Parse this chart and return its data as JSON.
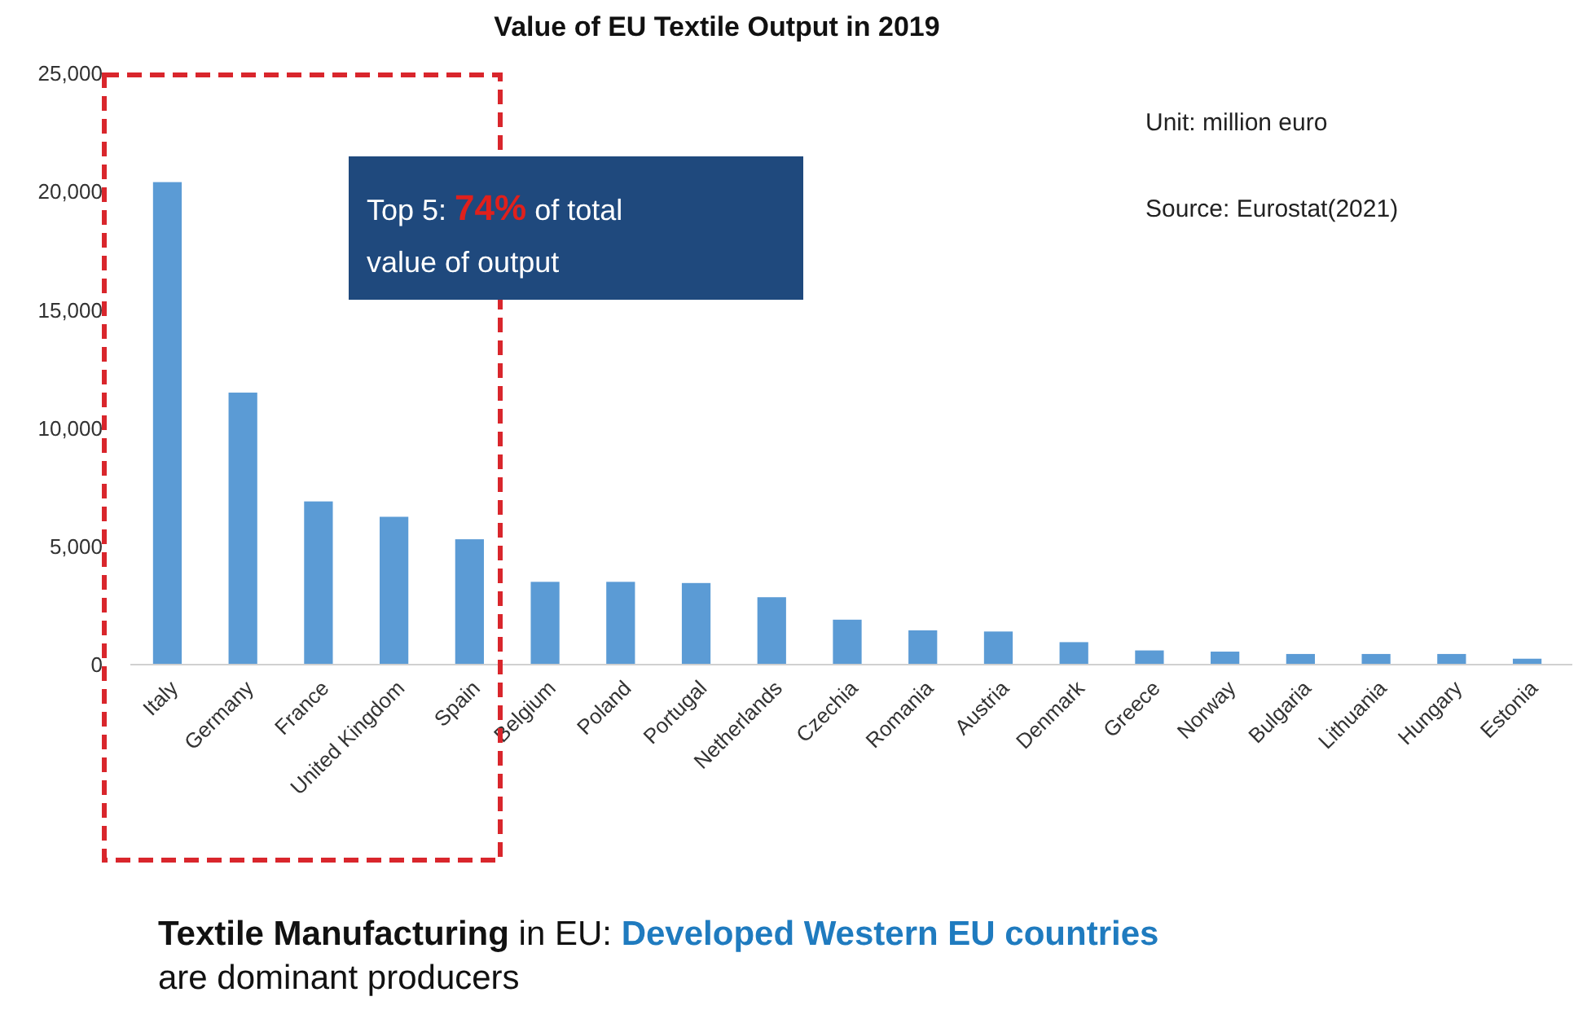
{
  "chart_data": {
    "type": "bar",
    "title": "Value of EU Textile Output in 2019",
    "categories": [
      "Italy",
      "Germany",
      "France",
      "United Kingdom",
      "Spain",
      "Belgium",
      "Poland",
      "Portugal",
      "Netherlands",
      "Czechia",
      "Romania",
      "Austria",
      "Denmark",
      "Greece",
      "Norway",
      "Bulgaria",
      "Lithuania",
      "Hungary",
      "Estonia"
    ],
    "values": [
      20400,
      11500,
      6900,
      6250,
      5300,
      3500,
      3500,
      3450,
      2850,
      1900,
      1450,
      1400,
      950,
      600,
      550,
      450,
      450,
      450,
      250
    ],
    "color": "#5b9bd5",
    "ylim": [
      0,
      25000
    ],
    "yticks": [
      {
        "value": 0,
        "label": "0"
      },
      {
        "value": 5000,
        "label": "5,000"
      },
      {
        "value": 10000,
        "label": "10,000"
      },
      {
        "value": 15000,
        "label": "15,000"
      },
      {
        "value": 20000,
        "label": "20,000"
      },
      {
        "value": 25000,
        "label": "25,000"
      }
    ],
    "annotations": [
      "Top 5: 74% of total value of output",
      "Unit: million euro",
      "Source: Eurostat(2021)",
      "Textile Manufacturing in EU: Developed Western EU countries are dominant producers"
    ]
  }
}
